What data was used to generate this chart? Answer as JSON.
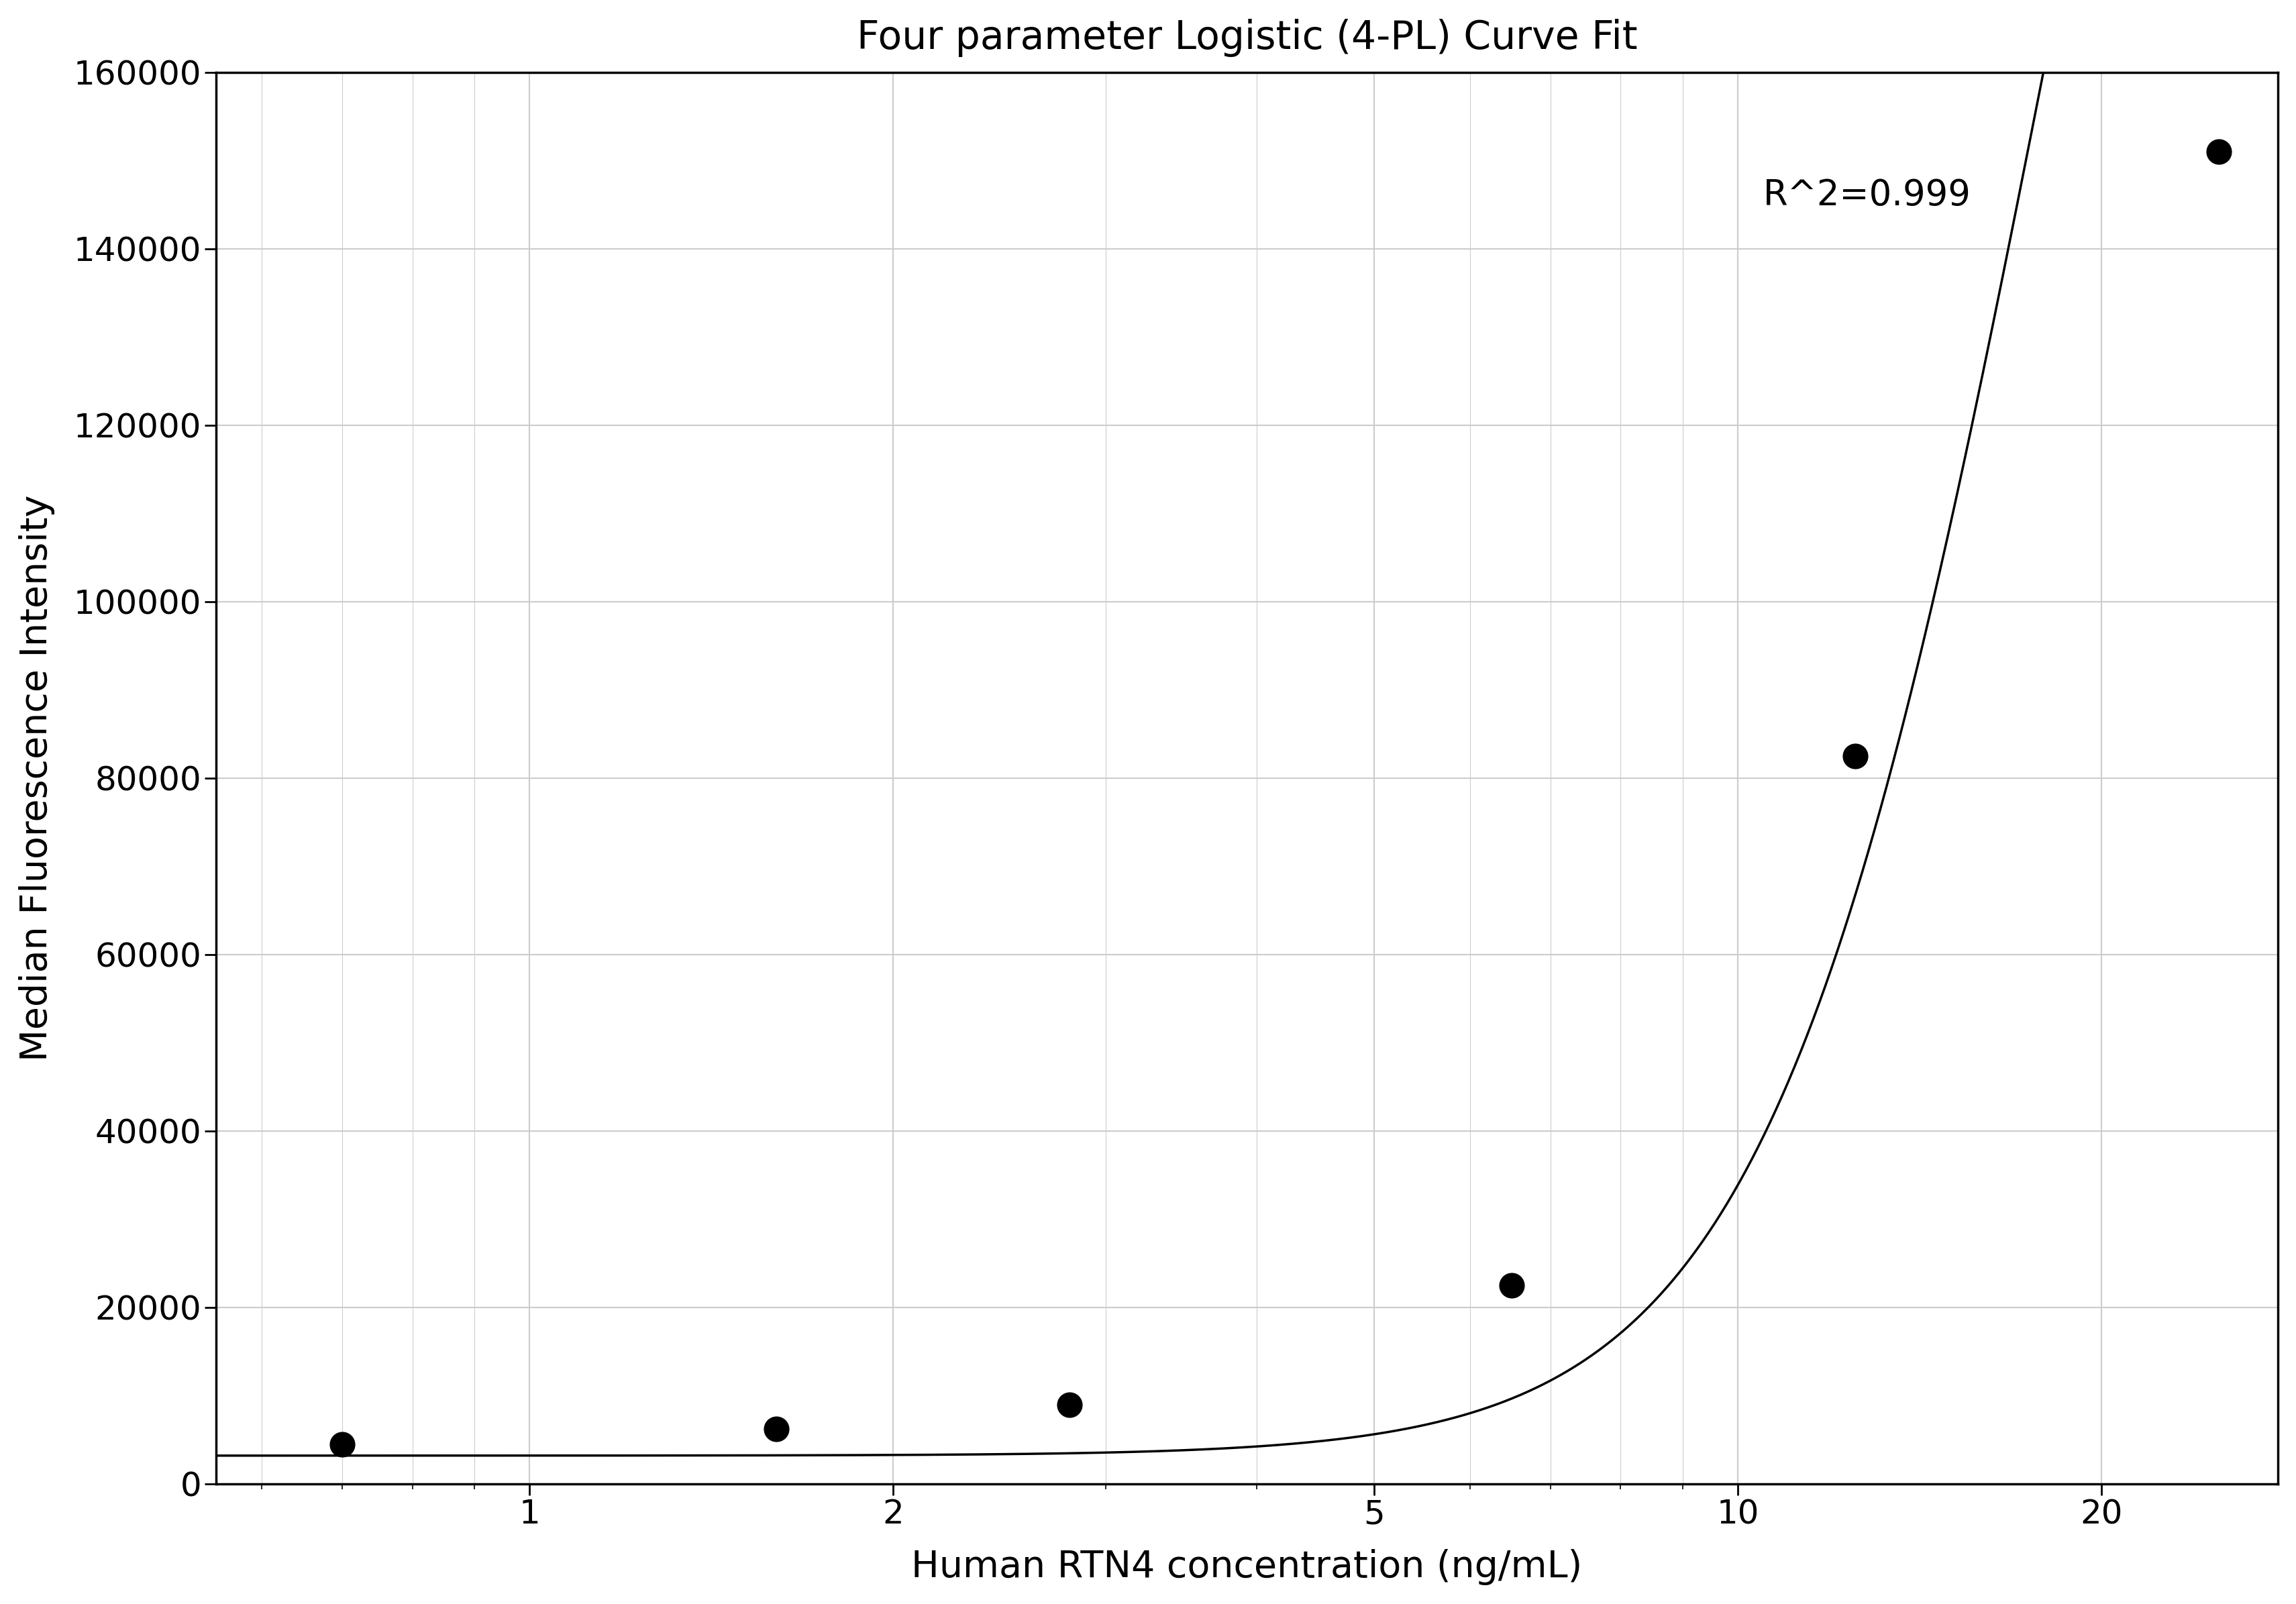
{
  "title": "Four parameter Logistic (4-PL) Curve Fit",
  "xlabel": "Human RTN4 concentration (ng/mL)",
  "ylabel": "Median Fluorescence Intensity",
  "data_x": [
    0.7,
    1.6,
    2.8,
    6.5,
    12.5,
    25.0
  ],
  "data_y": [
    4500,
    6200,
    9000,
    22500,
    82500,
    151000
  ],
  "r_squared_text": "R^2=0.999",
  "r_squared_x": 10.5,
  "r_squared_y": 148000,
  "ylim": [
    0,
    160000
  ],
  "xlim_log": [
    0.55,
    28
  ],
  "xticks": [
    1,
    2,
    5,
    10,
    20
  ],
  "yticks": [
    0,
    20000,
    40000,
    60000,
    80000,
    100000,
    120000,
    140000,
    160000
  ],
  "line_color": "#000000",
  "dot_color": "#000000",
  "grid_color": "#cccccc",
  "background_color": "#ffffff",
  "title_fontsize": 42,
  "label_fontsize": 40,
  "tick_fontsize": 36,
  "annotation_fontsize": 38,
  "ylabel_color": "#000000",
  "4pl_A": 3200,
  "4pl_B": 3.8,
  "4pl_C": 18.0,
  "4pl_D": 320000
}
